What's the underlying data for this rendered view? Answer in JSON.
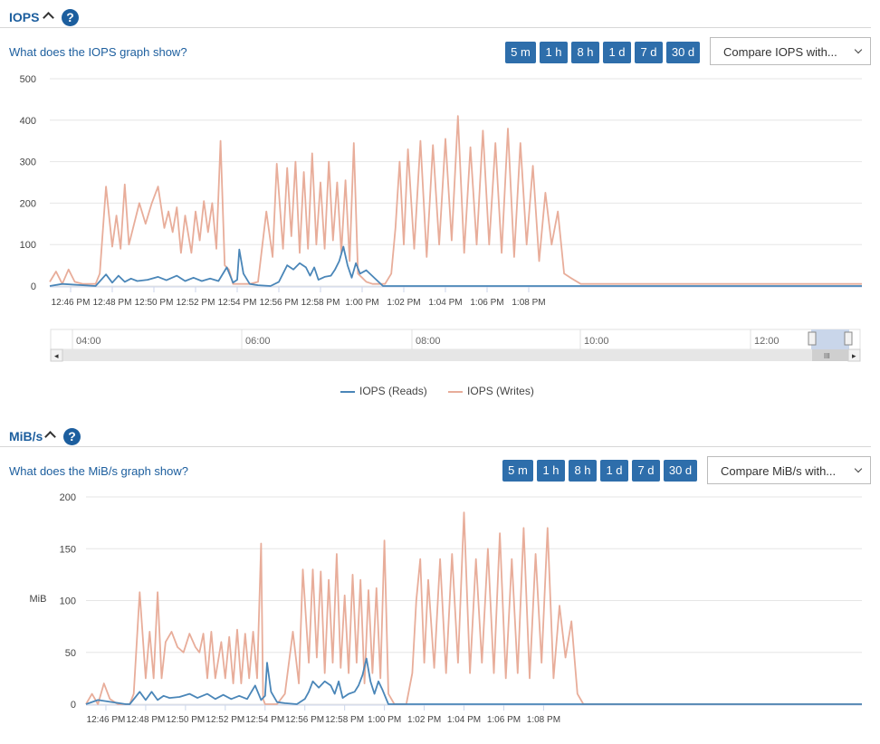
{
  "iops": {
    "title": "IOPS",
    "help_glyph": "?",
    "link_text": "What does the IOPS graph show?",
    "range_buttons": [
      "5 m",
      "1 h",
      "8 h",
      "1 d",
      "7 d",
      "30 d"
    ],
    "compare_label": "Compare IOPS with...",
    "legend": [
      "IOPS (Reads)",
      "IOPS (Writes)"
    ],
    "navigator_labels": [
      "04:00",
      "06:00",
      "08:00",
      "10:00",
      "12:00"
    ],
    "navigator_arrow_left": "◂",
    "navigator_arrow_right": "▸",
    "navigator_grip": "III"
  },
  "mibs": {
    "title": "MiB/s",
    "help_glyph": "?",
    "link_text": "What does the MiB/s graph show?",
    "range_buttons": [
      "5 m",
      "1 h",
      "8 h",
      "1 d",
      "7 d",
      "30 d"
    ],
    "compare_label": "Compare MiB/s with..."
  },
  "colors": {
    "accent": "#1c5e9e",
    "button": "#2e6eab",
    "reads": "#4a86b8",
    "writes": "#e8ad9a",
    "grid": "#e6e6e6"
  },
  "chart_data": [
    {
      "type": "line",
      "title": "",
      "xlabel": "",
      "ylabel": "",
      "ylim": [
        0,
        500
      ],
      "yticks": [
        0,
        100,
        200,
        300,
        400,
        500
      ],
      "x_range_minutes": [
        -15.0,
        24.0
      ],
      "xticks": [
        "12:46 PM",
        "12:48 PM",
        "12:50 PM",
        "12:52 PM",
        "12:54 PM",
        "12:56 PM",
        "12:58 PM",
        "1:00 PM",
        "1:02 PM",
        "1:04 PM",
        "1:06 PM",
        "1:08 PM"
      ],
      "xtick_minutes": [
        -14,
        -12,
        -10,
        -8,
        -6,
        -4,
        -2,
        0,
        2,
        4,
        6,
        8
      ],
      "series": [
        {
          "name": "IOPS (Reads)",
          "color": "#4a86b8",
          "x": [
            -15,
            -14.4,
            -12.8,
            -12.3,
            -12.0,
            -11.7,
            -11.4,
            -11.1,
            -10.8,
            -10.3,
            -9.8,
            -9.4,
            -8.9,
            -8.5,
            -8.1,
            -7.7,
            -7.3,
            -6.9,
            -6.5,
            -6.2,
            -6.0,
            -5.9,
            -5.7,
            -5.4,
            -5.0,
            -4.4,
            -4.0,
            -3.8,
            -3.6,
            -3.3,
            -3.0,
            -2.7,
            -2.5,
            -2.3,
            -2.1,
            -1.8,
            -1.5,
            -1.3,
            -1.1,
            -0.9,
            -0.7,
            -0.5,
            -0.3,
            -0.1,
            0.2,
            1.0,
            5.0,
            10.0,
            15.0,
            20.0,
            24.0
          ],
          "values": [
            0,
            5,
            0,
            28,
            8,
            25,
            10,
            18,
            12,
            15,
            22,
            14,
            25,
            12,
            20,
            12,
            18,
            12,
            45,
            8,
            15,
            88,
            30,
            5,
            2,
            0,
            10,
            30,
            50,
            40,
            55,
            45,
            25,
            45,
            15,
            22,
            25,
            40,
            60,
            95,
            50,
            20,
            55,
            30,
            38,
            0,
            0,
            0,
            0,
            0,
            0
          ]
        },
        {
          "name": "IOPS (Writes)",
          "color": "#e8ad9a",
          "x": [
            -15,
            -14.7,
            -14.4,
            -14.1,
            -13.8,
            -13.4,
            -12.8,
            -12.6,
            -12.3,
            -12.0,
            -11.8,
            -11.6,
            -11.4,
            -11.2,
            -11.0,
            -10.7,
            -10.4,
            -10.1,
            -9.8,
            -9.5,
            -9.3,
            -9.1,
            -8.9,
            -8.7,
            -8.5,
            -8.2,
            -8.0,
            -7.8,
            -7.6,
            -7.4,
            -7.2,
            -7.0,
            -6.8,
            -6.6,
            -6.4,
            -6.2,
            -6.1,
            -6.0,
            -5.9,
            -5.7,
            -5.4,
            -5.0,
            -4.6,
            -4.3,
            -4.1,
            -3.8,
            -3.6,
            -3.4,
            -3.2,
            -3.0,
            -2.8,
            -2.6,
            -2.4,
            -2.2,
            -2.0,
            -1.8,
            -1.6,
            -1.4,
            -1.2,
            -1.0,
            -0.8,
            -0.6,
            -0.4,
            -0.2,
            0.0,
            0.2,
            0.5,
            0.8,
            1.1,
            1.4,
            1.6,
            1.8,
            2.0,
            2.2,
            2.5,
            2.8,
            3.1,
            3.4,
            3.7,
            4.0,
            4.3,
            4.6,
            4.9,
            5.2,
            5.5,
            5.8,
            6.1,
            6.4,
            6.7,
            7.0,
            7.3,
            7.6,
            7.9,
            8.2,
            8.5,
            8.8,
            9.1,
            9.4,
            9.7,
            10.0,
            10.5,
            11.0,
            24.0
          ],
          "values": [
            10,
            35,
            5,
            40,
            10,
            5,
            5,
            30,
            240,
            95,
            170,
            90,
            245,
            100,
            140,
            200,
            150,
            200,
            240,
            140,
            180,
            130,
            190,
            80,
            170,
            80,
            180,
            110,
            205,
            130,
            200,
            90,
            350,
            50,
            40,
            5,
            5,
            5,
            5,
            5,
            5,
            10,
            180,
            70,
            295,
            90,
            285,
            120,
            300,
            80,
            275,
            90,
            320,
            100,
            250,
            90,
            300,
            110,
            250,
            80,
            255,
            60,
            345,
            30,
            20,
            10,
            5,
            5,
            5,
            30,
            140,
            300,
            100,
            330,
            90,
            350,
            70,
            340,
            100,
            355,
            110,
            410,
            80,
            335,
            100,
            375,
            100,
            345,
            80,
            380,
            70,
            345,
            100,
            290,
            60,
            225,
            100,
            180,
            30,
            20,
            5,
            5,
            5
          ]
        }
      ]
    },
    {
      "type": "line",
      "title": "",
      "xlabel": "",
      "ylabel": "MiB",
      "ylim": [
        0,
        200
      ],
      "yticks": [
        0,
        50,
        100,
        150,
        200
      ],
      "x_range_minutes": [
        -15.0,
        24.0
      ],
      "xticks": [
        "12:46 PM",
        "12:48 PM",
        "12:50 PM",
        "12:52 PM",
        "12:54 PM",
        "12:56 PM",
        "12:58 PM",
        "1:00 PM",
        "1:02 PM",
        "1:04 PM",
        "1:06 PM",
        "1:08 PM"
      ],
      "xtick_minutes": [
        -14,
        -12,
        -10,
        -8,
        -6,
        -4,
        -2,
        0,
        2,
        4,
        6,
        8
      ],
      "series": [
        {
          "name": "IOPS (Reads)",
          "color": "#4a86b8",
          "x": [
            -15,
            -14.4,
            -13.0,
            -12.8,
            -12.3,
            -12.0,
            -11.7,
            -11.4,
            -11.1,
            -10.8,
            -10.3,
            -9.8,
            -9.4,
            -8.9,
            -8.5,
            -8.1,
            -7.7,
            -7.3,
            -6.9,
            -6.5,
            -6.2,
            -6.0,
            -5.9,
            -5.7,
            -5.4,
            -5.0,
            -4.4,
            -4.0,
            -3.8,
            -3.6,
            -3.3,
            -3.0,
            -2.7,
            -2.5,
            -2.3,
            -2.1,
            -1.8,
            -1.5,
            -1.3,
            -1.1,
            -0.9,
            -0.7,
            -0.5,
            -0.3,
            -0.1,
            0.2,
            1.0,
            5.0,
            10.0,
            15.0,
            20.0,
            24.0
          ],
          "values": [
            0,
            4,
            0,
            0,
            12,
            4,
            12,
            4,
            8,
            6,
            7,
            10,
            6,
            10,
            5,
            9,
            5,
            8,
            5,
            18,
            4,
            8,
            40,
            12,
            2,
            1,
            0,
            5,
            12,
            22,
            16,
            22,
            18,
            10,
            22,
            6,
            10,
            12,
            18,
            28,
            44,
            22,
            10,
            22,
            14,
            0,
            0,
            0,
            0,
            0,
            0,
            0
          ]
        },
        {
          "name": "IOPS (Writes)",
          "color": "#e8ad9a",
          "x": [
            -15,
            -14.7,
            -14.4,
            -14.1,
            -13.8,
            -13.4,
            -12.8,
            -12.6,
            -12.3,
            -12.0,
            -11.8,
            -11.6,
            -11.4,
            -11.2,
            -11.0,
            -10.7,
            -10.4,
            -10.1,
            -9.8,
            -9.5,
            -9.3,
            -9.1,
            -8.9,
            -8.7,
            -8.5,
            -8.2,
            -8.0,
            -7.8,
            -7.6,
            -7.4,
            -7.2,
            -7.0,
            -6.8,
            -6.6,
            -6.4,
            -6.2,
            -6.1,
            -6.0,
            -5.9,
            -5.7,
            -5.4,
            -5.0,
            -4.6,
            -4.3,
            -4.1,
            -3.8,
            -3.6,
            -3.4,
            -3.2,
            -3.0,
            -2.8,
            -2.6,
            -2.4,
            -2.2,
            -2.0,
            -1.8,
            -1.6,
            -1.4,
            -1.2,
            -1.0,
            -0.8,
            -0.6,
            -0.4,
            -0.2,
            0.0,
            0.2,
            0.5,
            0.8,
            1.1,
            1.4,
            1.6,
            1.8,
            2.0,
            2.2,
            2.5,
            2.8,
            3.1,
            3.4,
            3.7,
            4.0,
            4.3,
            4.6,
            4.9,
            5.2,
            5.5,
            5.8,
            6.1,
            6.4,
            6.7,
            7.0,
            7.3,
            7.6,
            7.9,
            8.2,
            8.5,
            8.8,
            9.1,
            9.4,
            9.7,
            10.0,
            10.5,
            11.0,
            24.0
          ],
          "values": [
            0,
            10,
            0,
            20,
            5,
            0,
            0,
            10,
            108,
            25,
            70,
            25,
            108,
            25,
            60,
            70,
            55,
            50,
            68,
            55,
            50,
            68,
            25,
            70,
            25,
            60,
            25,
            65,
            20,
            72,
            20,
            68,
            25,
            70,
            25,
            155,
            5,
            0,
            0,
            0,
            0,
            10,
            70,
            20,
            130,
            40,
            130,
            45,
            128,
            30,
            120,
            40,
            145,
            35,
            105,
            30,
            125,
            40,
            120,
            20,
            110,
            30,
            112,
            25,
            158,
            10,
            0,
            0,
            0,
            30,
            100,
            140,
            40,
            120,
            35,
            140,
            30,
            145,
            40,
            185,
            30,
            140,
            40,
            150,
            30,
            165,
            25,
            140,
            30,
            170,
            25,
            145,
            40,
            170,
            25,
            95,
            45,
            80,
            10,
            0,
            0,
            0,
            0
          ]
        }
      ]
    }
  ]
}
